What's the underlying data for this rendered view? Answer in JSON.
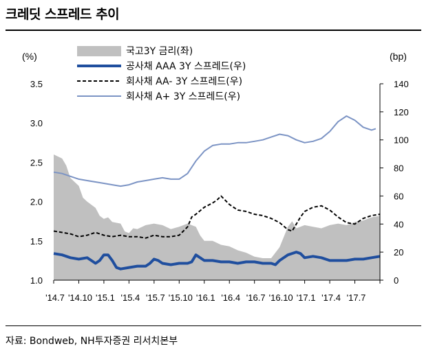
{
  "title": "크레딧 스프레드 추이",
  "source": "자료: Bondweb, NH투자증권 리서치본부",
  "chart_data": {
    "type": "line",
    "left_unit": "(%)",
    "right_unit": "(bp)",
    "left_axis": {
      "min": 1.0,
      "max": 3.5,
      "ticks": [
        "1.0",
        "1.5",
        "2.0",
        "2.5",
        "3.0",
        "3.5"
      ]
    },
    "right_axis": {
      "min": 0,
      "max": 140,
      "ticks": [
        "0",
        "20",
        "40",
        "60",
        "80",
        "100",
        "120",
        "140"
      ]
    },
    "x_tick_labels": [
      "'14.7",
      "'14.10",
      "'15.1",
      "'15.4",
      "'15.7",
      "'15.10",
      "'16.1",
      "'16.4",
      "'16.7",
      "'16.10",
      "'17.1",
      "'17.4",
      "'17.7"
    ],
    "x_range": [
      0,
      39
    ],
    "series": [
      {
        "name": "국고3Y 금리(좌)",
        "axis": "left",
        "style": "area",
        "color": "#c0c0c0",
        "points": [
          [
            0,
            2.6
          ],
          [
            1,
            2.55
          ],
          [
            1.5,
            2.46
          ],
          [
            2,
            2.3
          ],
          [
            3,
            2.2
          ],
          [
            3.5,
            2.05
          ],
          [
            4,
            2.0
          ],
          [
            5,
            1.92
          ],
          [
            5.5,
            1.82
          ],
          [
            6,
            1.78
          ],
          [
            6.5,
            1.8
          ],
          [
            7,
            1.74
          ],
          [
            8,
            1.72
          ],
          [
            8.5,
            1.62
          ],
          [
            9,
            1.6
          ],
          [
            9.5,
            1.66
          ],
          [
            10,
            1.65
          ],
          [
            11,
            1.7
          ],
          [
            12,
            1.72
          ],
          [
            13,
            1.7
          ],
          [
            14,
            1.65
          ],
          [
            15,
            1.68
          ],
          [
            16,
            1.72
          ],
          [
            17,
            1.68
          ],
          [
            17.5,
            1.57
          ],
          [
            18,
            1.5
          ],
          [
            19,
            1.5
          ],
          [
            20,
            1.45
          ],
          [
            21,
            1.43
          ],
          [
            22,
            1.38
          ],
          [
            23,
            1.35
          ],
          [
            24,
            1.3
          ],
          [
            25,
            1.28
          ],
          [
            26,
            1.28
          ],
          [
            26.5,
            1.35
          ],
          [
            27,
            1.42
          ],
          [
            28,
            1.68
          ],
          [
            28.5,
            1.75
          ],
          [
            29,
            1.66
          ],
          [
            30,
            1.7
          ],
          [
            31,
            1.68
          ],
          [
            32,
            1.66
          ],
          [
            33,
            1.7
          ],
          [
            34,
            1.72
          ],
          [
            35,
            1.7
          ],
          [
            36,
            1.74
          ],
          [
            37,
            1.76
          ],
          [
            38,
            1.8
          ],
          [
            39,
            1.82
          ]
        ]
      },
      {
        "name": "공사채 AAA 3Y 스프레드(우)",
        "axis": "right",
        "style": "solid-thick",
        "color": "#1f4e9e",
        "points": [
          [
            0,
            19
          ],
          [
            1,
            18
          ],
          [
            2,
            16
          ],
          [
            3,
            15
          ],
          [
            4,
            16
          ],
          [
            4.5,
            14
          ],
          [
            5,
            12
          ],
          [
            5.5,
            14
          ],
          [
            6,
            18
          ],
          [
            6.5,
            18
          ],
          [
            7,
            14
          ],
          [
            7.5,
            9
          ],
          [
            8,
            8
          ],
          [
            9,
            9
          ],
          [
            10,
            10
          ],
          [
            11,
            10
          ],
          [
            11.5,
            12
          ],
          [
            12,
            15
          ],
          [
            12.5,
            14
          ],
          [
            13,
            12
          ],
          [
            14,
            11
          ],
          [
            15,
            12
          ],
          [
            16,
            12
          ],
          [
            16.5,
            13
          ],
          [
            17,
            18
          ],
          [
            17.5,
            16
          ],
          [
            18,
            14
          ],
          [
            19,
            14
          ],
          [
            20,
            13
          ],
          [
            21,
            13
          ],
          [
            22,
            12
          ],
          [
            23,
            13
          ],
          [
            24,
            13
          ],
          [
            25,
            12
          ],
          [
            26,
            12
          ],
          [
            26.5,
            11
          ],
          [
            27,
            14
          ],
          [
            28,
            18
          ],
          [
            29,
            20
          ],
          [
            29.5,
            19
          ],
          [
            30,
            16
          ],
          [
            31,
            17
          ],
          [
            32,
            16
          ],
          [
            33,
            14
          ],
          [
            34,
            14
          ],
          [
            35,
            14
          ],
          [
            36,
            15
          ],
          [
            37,
            15
          ],
          [
            38,
            16
          ],
          [
            39,
            17
          ]
        ]
      },
      {
        "name": "회사채 AA- 3Y 스프레드(우)",
        "axis": "right",
        "style": "dashed",
        "color": "#000000",
        "points": [
          [
            0,
            35
          ],
          [
            1,
            34
          ],
          [
            2,
            33
          ],
          [
            3,
            31
          ],
          [
            4,
            32
          ],
          [
            5,
            34
          ],
          [
            6,
            32
          ],
          [
            7,
            31
          ],
          [
            8,
            32
          ],
          [
            9,
            31
          ],
          [
            10,
            31
          ],
          [
            11,
            30
          ],
          [
            12,
            32
          ],
          [
            13,
            31
          ],
          [
            14,
            31
          ],
          [
            15,
            32
          ],
          [
            16,
            38
          ],
          [
            16.5,
            45
          ],
          [
            17,
            47
          ],
          [
            18,
            52
          ],
          [
            19,
            55
          ],
          [
            19.5,
            57
          ],
          [
            20,
            60
          ],
          [
            20.5,
            57
          ],
          [
            21,
            54
          ],
          [
            22,
            50
          ],
          [
            23,
            49
          ],
          [
            24,
            47
          ],
          [
            25,
            46
          ],
          [
            26,
            44
          ],
          [
            27,
            41
          ],
          [
            28,
            36
          ],
          [
            28.5,
            35
          ],
          [
            29,
            40
          ],
          [
            29.5,
            45
          ],
          [
            30,
            49
          ],
          [
            31,
            52
          ],
          [
            32,
            53
          ],
          [
            33,
            50
          ],
          [
            34,
            45
          ],
          [
            35,
            41
          ],
          [
            36,
            40
          ],
          [
            37,
            44
          ],
          [
            38,
            46
          ],
          [
            39,
            47
          ]
        ]
      },
      {
        "name": "회사채 A+ 3Y 스프레드(우)",
        "axis": "right",
        "style": "solid-thin",
        "color": "#7b93c4",
        "points": [
          [
            0,
            77
          ],
          [
            1,
            76
          ],
          [
            2,
            74
          ],
          [
            3,
            72
          ],
          [
            4,
            71
          ],
          [
            5,
            70
          ],
          [
            6,
            69
          ],
          [
            7,
            68
          ],
          [
            8,
            67
          ],
          [
            9,
            68
          ],
          [
            10,
            70
          ],
          [
            11,
            71
          ],
          [
            12,
            72
          ],
          [
            13,
            73
          ],
          [
            14,
            72
          ],
          [
            15,
            72
          ],
          [
            16,
            76
          ],
          [
            17,
            85
          ],
          [
            18,
            92
          ],
          [
            19,
            96
          ],
          [
            20,
            97
          ],
          [
            21,
            97
          ],
          [
            22,
            98
          ],
          [
            23,
            98
          ],
          [
            24,
            99
          ],
          [
            25,
            100
          ],
          [
            26,
            102
          ],
          [
            27,
            104
          ],
          [
            28,
            103
          ],
          [
            29,
            100
          ],
          [
            30,
            98
          ],
          [
            31,
            99
          ],
          [
            32,
            101
          ],
          [
            33,
            106
          ],
          [
            34,
            113
          ],
          [
            35,
            117
          ],
          [
            36,
            114
          ],
          [
            37,
            109
          ],
          [
            38,
            107
          ],
          [
            38.5,
            108
          ]
        ]
      }
    ]
  }
}
